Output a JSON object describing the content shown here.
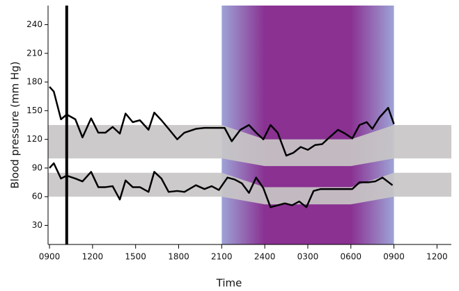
{
  "chart_data": {
    "type": "line",
    "xlabel": "Time",
    "ylabel": "Blood pressure (mm Hg)",
    "xlim": [
      -0.1,
      28
    ],
    "ylim": [
      10,
      260
    ],
    "xticks": [
      {
        "value": 0,
        "label": "0900"
      },
      {
        "value": 3,
        "label": "1200"
      },
      {
        "value": 6,
        "label": "1500"
      },
      {
        "value": 9,
        "label": "1800"
      },
      {
        "value": 12,
        "label": "2100"
      },
      {
        "value": 15,
        "label": "2400"
      },
      {
        "value": 18,
        "label": "0300"
      },
      {
        "value": 21,
        "label": "0600"
      },
      {
        "value": 24,
        "label": "0900"
      },
      {
        "value": 27,
        "label": "1200"
      }
    ],
    "yticks": [
      30,
      60,
      90,
      120,
      150,
      180,
      210,
      240
    ],
    "shaded_region": {
      "x": [
        12,
        24
      ],
      "edge_color": "#9ea3d6",
      "color": "#8a3192"
    },
    "marker_x": 1.2,
    "bands": [
      {
        "color": "#c8c6c6",
        "x": [
          -0.1,
          12,
          15,
          21,
          24,
          28
        ],
        "low": [
          100,
          100,
          92,
          92,
          100,
          100
        ],
        "high": [
          135,
          135,
          120,
          120,
          135,
          135
        ]
      },
      {
        "color": "#c8c6c6",
        "x": [
          -0.1,
          12,
          15,
          21,
          24,
          28
        ],
        "low": [
          60,
          60,
          52,
          52,
          60,
          60
        ],
        "high": [
          85,
          85,
          70,
          70,
          85,
          85
        ]
      }
    ],
    "series": [
      {
        "color": "#000000",
        "x": [
          0,
          0.3,
          0.8,
          1.2,
          1.8,
          2.3,
          2.9,
          3.4,
          3.9,
          4.4,
          4.9,
          5.3,
          5.8,
          6.3,
          6.9,
          7.3,
          7.8,
          8.3,
          8.9,
          9.4,
          10.2,
          10.8,
          11.6,
          12.2,
          12.7,
          13.3,
          13.9,
          14.4,
          14.9,
          15.4,
          15.9,
          16.5,
          17.0,
          17.5,
          18.0,
          18.5,
          19.0,
          19.5,
          20.1,
          20.6,
          21.1,
          21.6,
          22.1,
          22.5,
          23.0,
          23.6,
          24.0
        ],
        "values": [
          175,
          170,
          141,
          146,
          141,
          122,
          142,
          127,
          127,
          133,
          126,
          147,
          138,
          140,
          130,
          148,
          140,
          131,
          120,
          127,
          131,
          132,
          132,
          132,
          118,
          130,
          135,
          127,
          120,
          135,
          127,
          103,
          106,
          112,
          109,
          114,
          115,
          122,
          130,
          126,
          121,
          135,
          138,
          131,
          143,
          153,
          136
        ]
      },
      {
        "color": "#000000",
        "x": [
          0,
          0.3,
          0.8,
          1.2,
          1.8,
          2.3,
          2.9,
          3.4,
          3.9,
          4.4,
          4.9,
          5.3,
          5.8,
          6.3,
          6.9,
          7.3,
          7.8,
          8.3,
          8.9,
          9.4,
          10.2,
          10.8,
          11.3,
          11.8,
          12.4,
          12.9,
          13.4,
          13.9,
          14.4,
          14.9,
          15.4,
          15.9,
          16.4,
          16.9,
          17.4,
          17.9,
          18.4,
          18.9,
          20.0,
          21.1,
          21.6,
          22.2,
          22.7,
          23.2,
          23.9
        ],
        "values": [
          90,
          95,
          79,
          82,
          79,
          76,
          86,
          70,
          70,
          71,
          57,
          77,
          70,
          70,
          65,
          86,
          79,
          65,
          66,
          65,
          72,
          68,
          71,
          67,
          80,
          78,
          74,
          64,
          80,
          69,
          49,
          51,
          53,
          51,
          55,
          49,
          66,
          68,
          68,
          68,
          75,
          75,
          76,
          80,
          72
        ]
      }
    ]
  }
}
